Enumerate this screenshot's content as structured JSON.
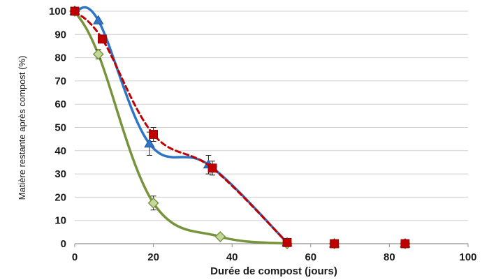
{
  "chart_data": {
    "type": "line",
    "title": "",
    "xlabel": "Durée de compost (jours)",
    "ylabel": "Matière restante après compost (%)",
    "xlim": [
      0,
      100
    ],
    "ylim": [
      0,
      100
    ],
    "x_ticks": [
      "0",
      "20",
      "40",
      "60",
      "80",
      "100"
    ],
    "y_ticks": [
      "0",
      "10",
      "20",
      "30",
      "40",
      "50",
      "60",
      "70",
      "80",
      "90",
      "100"
    ],
    "grid": "horizontal",
    "legend": "none",
    "series": [
      {
        "line_style": "dashed",
        "marker": "square",
        "color": "#c00000",
        "points": [
          {
            "x": 0,
            "y": 100,
            "err": 0
          },
          {
            "x": 7,
            "y": 88,
            "err": 0
          },
          {
            "x": 20,
            "y": 47,
            "err": 3
          },
          {
            "x": 35,
            "y": 32.5,
            "err": 3
          },
          {
            "x": 54,
            "y": 0.5,
            "err": 0
          },
          {
            "x": 66,
            "y": 0,
            "err": 0
          },
          {
            "x": 84,
            "y": 0,
            "err": 0
          }
        ]
      },
      {
        "line_style": "solid",
        "marker": "triangle",
        "color": "#2e75c6",
        "points": [
          {
            "x": 0,
            "y": 100,
            "err": 0
          },
          {
            "x": 6,
            "y": 96,
            "err": 0
          },
          {
            "x": 19,
            "y": 43,
            "err": 5
          },
          {
            "x": 34,
            "y": 34,
            "err": 4
          },
          {
            "x": 54,
            "y": 0.5,
            "err": 0
          },
          {
            "x": 66,
            "y": 0,
            "err": 0
          },
          {
            "x": 84,
            "y": 0,
            "err": 0
          }
        ]
      },
      {
        "line_style": "solid",
        "marker": "diamond",
        "color": "#77933c",
        "marker_fill": "#c3d69b",
        "points": [
          {
            "x": 0,
            "y": 100,
            "err": 0
          },
          {
            "x": 6,
            "y": 81.5,
            "err": 2
          },
          {
            "x": 20,
            "y": 17.5,
            "err": 3
          },
          {
            "x": 37,
            "y": 3,
            "err": 0
          },
          {
            "x": 54,
            "y": 0,
            "err": 0
          },
          {
            "x": 66,
            "y": 0,
            "err": 0
          },
          {
            "x": 84,
            "y": 0,
            "err": 0
          }
        ]
      }
    ]
  }
}
